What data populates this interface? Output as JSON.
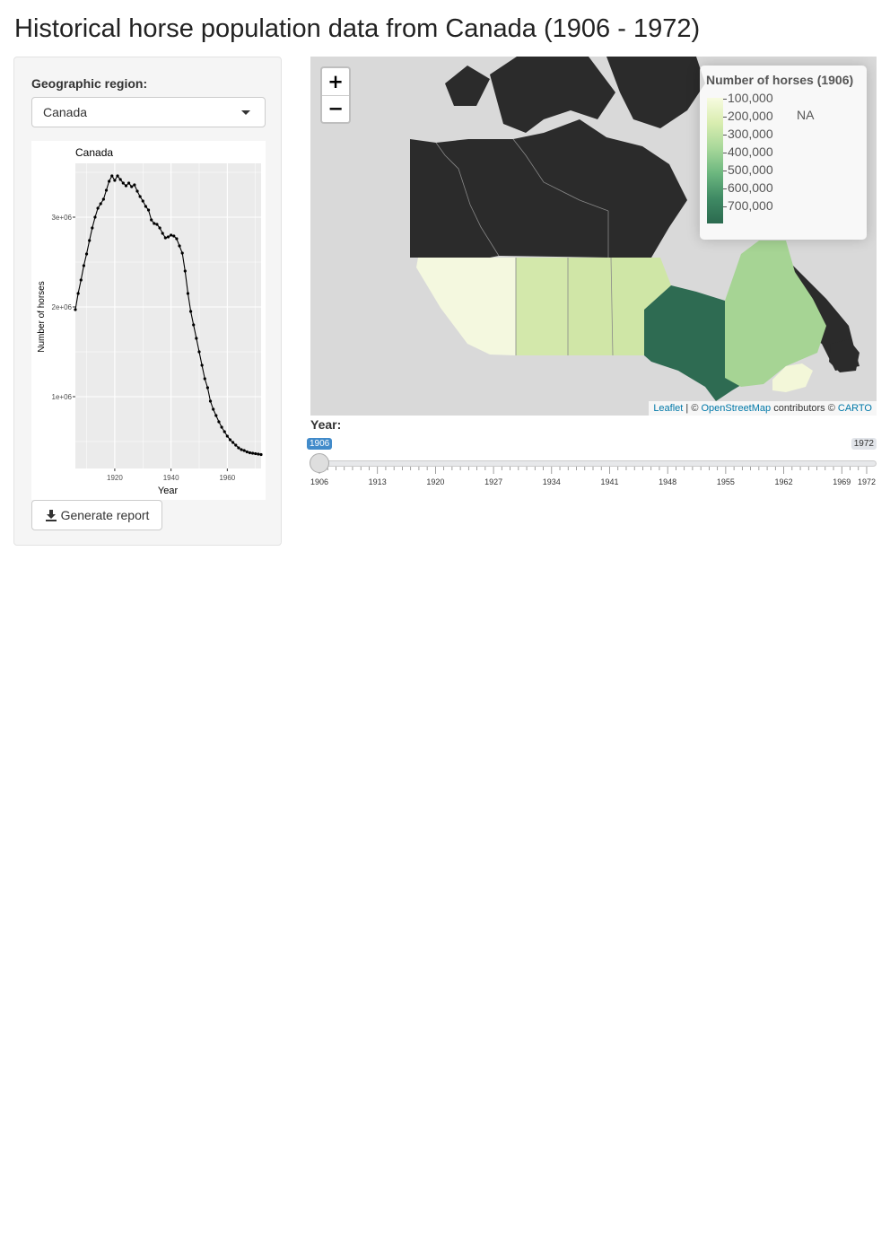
{
  "page": {
    "title": "Historical horse population data from Canada (1906 - 1972)"
  },
  "sidebar": {
    "region_label": "Geographic region:",
    "region_value": "Canada",
    "report_button": "Generate report"
  },
  "chart_data": {
    "type": "line",
    "title": "Canada",
    "xlabel": "Year",
    "ylabel": "Number of horses",
    "xlim": [
      1906,
      1972
    ],
    "ylim": [
      200000,
      3600000
    ],
    "x_ticks": [
      1920,
      1940,
      1960
    ],
    "y_ticks": [
      {
        "value": 1000000,
        "label": "1e+06"
      },
      {
        "value": 2000000,
        "label": "2e+06"
      },
      {
        "value": 3000000,
        "label": "3e+06"
      }
    ],
    "series": [
      {
        "x": [
          1906,
          1907,
          1908,
          1909,
          1910,
          1911,
          1912,
          1913,
          1914,
          1915,
          1916,
          1917,
          1918,
          1919,
          1920,
          1921,
          1922,
          1923,
          1924,
          1925,
          1926,
          1927,
          1928,
          1929,
          1930,
          1931,
          1932,
          1933,
          1934,
          1935,
          1936,
          1937,
          1938,
          1939,
          1940,
          1941,
          1942,
          1943,
          1944,
          1945,
          1946,
          1947,
          1948,
          1949,
          1950,
          1951,
          1952,
          1953,
          1954,
          1955,
          1956,
          1957,
          1958,
          1959,
          1960,
          1961,
          1962,
          1963,
          1964,
          1965,
          1966,
          1967,
          1968,
          1969,
          1970,
          1971,
          1972
        ],
        "y": [
          1970000,
          2150000,
          2300000,
          2460000,
          2590000,
          2740000,
          2880000,
          3000000,
          3100000,
          3150000,
          3200000,
          3300000,
          3400000,
          3460000,
          3410000,
          3460000,
          3420000,
          3380000,
          3350000,
          3380000,
          3340000,
          3360000,
          3290000,
          3230000,
          3180000,
          3120000,
          3080000,
          2970000,
          2930000,
          2920000,
          2880000,
          2820000,
          2770000,
          2780000,
          2800000,
          2790000,
          2760000,
          2680000,
          2600000,
          2400000,
          2150000,
          1950000,
          1800000,
          1650000,
          1500000,
          1350000,
          1200000,
          1100000,
          950000,
          860000,
          790000,
          720000,
          660000,
          610000,
          560000,
          520000,
          490000,
          460000,
          430000,
          410000,
          400000,
          385000,
          375000,
          370000,
          365000,
          360000,
          355000
        ]
      }
    ]
  },
  "map": {
    "zoom_in": "+",
    "zoom_out": "−",
    "legend_title": "Number of horses (1906)",
    "legend_labels": [
      "100,000",
      "200,000",
      "300,000",
      "400,000",
      "500,000",
      "600,000",
      "700,000"
    ],
    "legend_na": "NA",
    "attribution": {
      "leaflet": "Leaflet",
      "sep1": " | © ",
      "osm": "OpenStreetMap",
      "contrib": " contributors © ",
      "carto": "CARTO"
    },
    "colors": {
      "no_data": "#2b2b2b",
      "ocean": "#d9d9d9",
      "bc": "#f4f8df",
      "alberta": "#d3e8ab",
      "saskatchewan": "#d0e6a7",
      "manitoba": "#cfe6a6",
      "ontario": "#2e6b52",
      "quebec": "#a6d494",
      "maritimes": "#f3f7d9"
    }
  },
  "slider": {
    "label": "Year:",
    "min": 1906,
    "max": 1972,
    "value": 1906,
    "min_label": "1906",
    "max_label": "1972",
    "ticks": [
      1906,
      1913,
      1920,
      1927,
      1934,
      1941,
      1948,
      1955,
      1962,
      1969,
      1972
    ]
  }
}
